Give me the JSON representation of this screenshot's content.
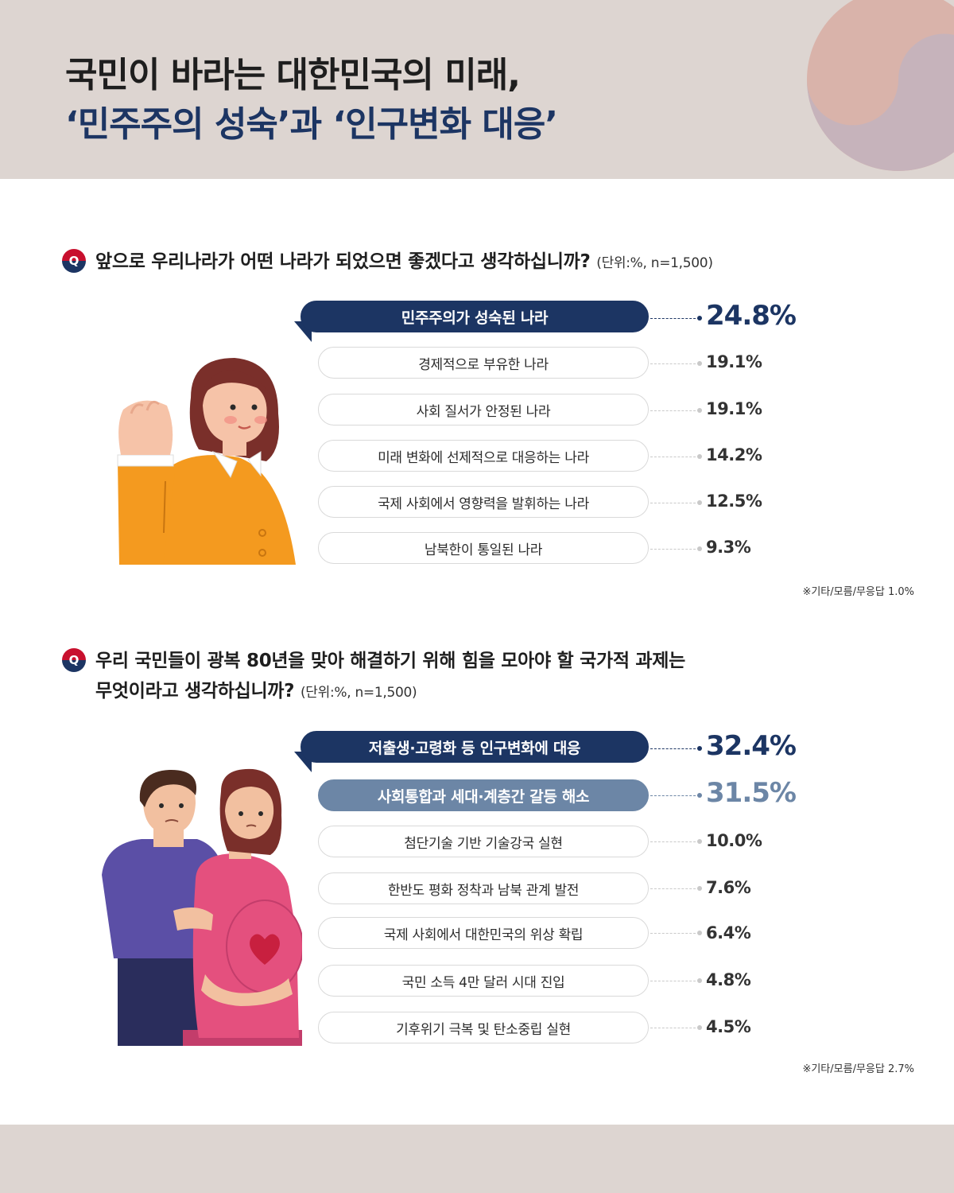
{
  "title": {
    "line1": "국민이 바라는 대한민국의 미래,",
    "line2": "‘민주주의 성숙’과 ‘인구변화 대응’"
  },
  "colors": {
    "navy": "#1c3563",
    "slate": "#6c86a6",
    "header_bg": "#ddd5d1",
    "red": "#c8102e"
  },
  "q_badge": "Q",
  "chart_data": [
    {
      "type": "bar",
      "question": "앞으로 우리나라가 어떤 나라가 되었으면 좋겠다고 생각하십니까?",
      "unit": "(단위:%, n=1,500)",
      "categories": [
        "민주주의가 성숙된 나라",
        "경제적으로 부유한 나라",
        "사회 질서가 안정된 나라",
        "미래 변화에 선제적으로 대응하는 나라",
        "국제 사회에서 영향력을 발휘하는 나라",
        "남북한이 통일된 나라"
      ],
      "values": [
        24.8,
        19.1,
        19.1,
        14.2,
        12.5,
        9.3
      ],
      "labels": [
        "24.8%",
        "19.1%",
        "19.1%",
        "14.2%",
        "12.5%",
        "9.3%"
      ],
      "note": "※기타/모름/무응답 1.0%"
    },
    {
      "type": "bar",
      "question": "우리 국민들이 광복 80년을 맞아 해결하기 위해 힘을 모아야 할 국가적 과제는 무엇이라고 생각하십니까?",
      "question_line1": "우리 국민들이 광복 80년을 맞아 해결하기 위해 힘을 모아야 할 국가적 과제는",
      "question_line2": "무엇이라고 생각하십니까?",
      "unit": "(단위:%, n=1,500)",
      "categories": [
        "저출생·고령화 등 인구변화에 대응",
        "사회통합과 세대·계층간 갈등 해소",
        "첨단기술 기반 기술강국 실현",
        "한반도 평화 정착과 남북 관계 발전",
        "국제 사회에서 대한민국의 위상 확립",
        "국민 소득 4만 달러 시대 진입",
        "기후위기 극복 및 탄소중립 실현"
      ],
      "values": [
        32.4,
        31.5,
        10.0,
        7.6,
        6.4,
        4.8,
        4.5
      ],
      "labels": [
        "32.4%",
        "31.5%",
        "10.0%",
        "7.6%",
        "6.4%",
        "4.8%",
        "4.5%"
      ],
      "note": "※기타/모름/무응답 2.7%"
    }
  ]
}
